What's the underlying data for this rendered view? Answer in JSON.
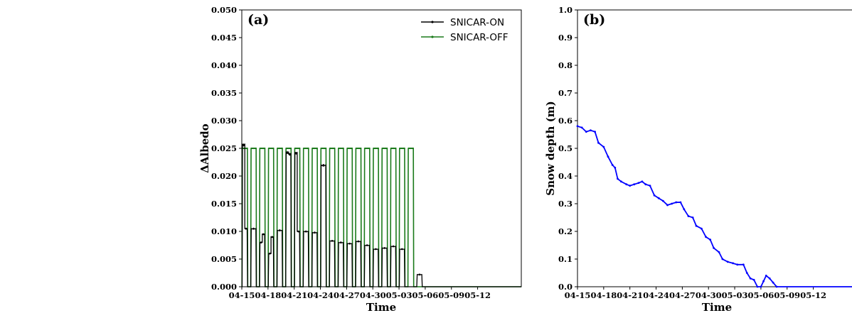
{
  "colors": {
    "snicar_on": "#000000",
    "snicar_off": "#1a7a1a",
    "snow_depth": "#0000ff",
    "zero_line": "#000000"
  },
  "chart_data": [
    {
      "type": "line",
      "panel_label": "(a)",
      "xlabel": "Time",
      "ylabel": "ΔAlbedo",
      "ylim": [
        0,
        0.05
      ],
      "x_unit": "days since 04-15",
      "xlim": [
        0,
        32
      ],
      "xticks": [
        {
          "pos": 0,
          "label": "04-15"
        },
        {
          "pos": 3,
          "label": "04-18"
        },
        {
          "pos": 6,
          "label": "04-21"
        },
        {
          "pos": 9,
          "label": "04-24"
        },
        {
          "pos": 12,
          "label": "04-27"
        },
        {
          "pos": 15,
          "label": "04-30"
        },
        {
          "pos": 18,
          "label": "05-03"
        },
        {
          "pos": 21,
          "label": "05-06"
        },
        {
          "pos": 24,
          "label": "05-09"
        },
        {
          "pos": 27,
          "label": "05-12"
        }
      ],
      "yticks": [
        "0.000",
        "0.005",
        "0.010",
        "0.015",
        "0.020",
        "0.025",
        "0.030",
        "0.035",
        "0.040",
        "0.045",
        "0.050"
      ],
      "legend": {
        "placement": "top-right",
        "entries": [
          "SNICAR-ON",
          "SNICAR-OFF"
        ]
      },
      "series": [
        {
          "name": "SNICAR-ON",
          "daily_pattern": "daytime peaks, zero at night",
          "peaks": [
            {
              "day": 0,
              "values": [
                0.0257,
                0.0105
              ]
            },
            {
              "day": 1,
              "values": [
                0.0105
              ]
            },
            {
              "day": 2,
              "values": [
                0.008,
                0.0095
              ]
            },
            {
              "day": 3,
              "values": [
                0.006,
                0.009
              ]
            },
            {
              "day": 4,
              "values": [
                0.0102
              ]
            },
            {
              "day": 5,
              "values": [
                0.0243,
                0.024
              ]
            },
            {
              "day": 6,
              "values": [
                0.0242,
                0.01
              ]
            },
            {
              "day": 7,
              "values": [
                0.01
              ]
            },
            {
              "day": 8,
              "values": [
                0.0098
              ]
            },
            {
              "day": 9,
              "values": [
                0.022
              ]
            },
            {
              "day": 10,
              "values": [
                0.0083
              ]
            },
            {
              "day": 11,
              "values": [
                0.008
              ]
            },
            {
              "day": 12,
              "values": [
                0.0078
              ]
            },
            {
              "day": 13,
              "values": [
                0.0082
              ]
            },
            {
              "day": 14,
              "values": [
                0.0075
              ]
            },
            {
              "day": 15,
              "values": [
                0.0068
              ]
            },
            {
              "day": 16,
              "values": [
                0.007
              ]
            },
            {
              "day": 17,
              "values": [
                0.0073
              ]
            },
            {
              "day": 18,
              "values": [
                0.0068
              ]
            },
            {
              "day": 20,
              "values": [
                0.0022
              ]
            }
          ]
        },
        {
          "name": "SNICAR-OFF",
          "daily_pattern": "constant during daytime, zero at night",
          "day_value": 0.025,
          "days": [
            0,
            1,
            2,
            3,
            4,
            5,
            6,
            7,
            8,
            9,
            10,
            11,
            12,
            13,
            14,
            15,
            16,
            17,
            18,
            19
          ]
        }
      ]
    },
    {
      "type": "line",
      "panel_label": "(b)",
      "xlabel": "Time",
      "ylabel": "Snow depth (m)",
      "ylim": [
        0,
        1.0
      ],
      "x_unit": "days since 04-15",
      "xlim": [
        0,
        32
      ],
      "xticks": [
        {
          "pos": 0,
          "label": "04-15"
        },
        {
          "pos": 3,
          "label": "04-18"
        },
        {
          "pos": 6,
          "label": "04-21"
        },
        {
          "pos": 9,
          "label": "04-24"
        },
        {
          "pos": 12,
          "label": "04-27"
        },
        {
          "pos": 15,
          "label": "04-30"
        },
        {
          "pos": 18,
          "label": "05-03"
        },
        {
          "pos": 21,
          "label": "05-06"
        },
        {
          "pos": 24,
          "label": "05-09"
        },
        {
          "pos": 27,
          "label": "05-12"
        }
      ],
      "yticks": [
        "0.0",
        "0.1",
        "0.2",
        "0.3",
        "0.4",
        "0.5",
        "0.6",
        "0.7",
        "0.8",
        "0.9",
        "1.0"
      ],
      "zero_reference_line": "dashed",
      "series": [
        {
          "name": "snow depth",
          "points": [
            [
              0,
              0.58
            ],
            [
              0.5,
              0.575
            ],
            [
              1,
              0.56
            ],
            [
              1.5,
              0.565
            ],
            [
              2,
              0.56
            ],
            [
              2.4,
              0.52
            ],
            [
              3,
              0.505
            ],
            [
              3.5,
              0.47
            ],
            [
              4,
              0.44
            ],
            [
              4.3,
              0.43
            ],
            [
              4.6,
              0.39
            ],
            [
              5,
              0.38
            ],
            [
              5.6,
              0.37
            ],
            [
              6,
              0.365
            ],
            [
              6.5,
              0.37
            ],
            [
              7,
              0.375
            ],
            [
              7.4,
              0.38
            ],
            [
              7.8,
              0.37
            ],
            [
              8.3,
              0.365
            ],
            [
              8.8,
              0.33
            ],
            [
              9.3,
              0.32
            ],
            [
              9.8,
              0.31
            ],
            [
              10.3,
              0.295
            ],
            [
              10.8,
              0.3
            ],
            [
              11.3,
              0.305
            ],
            [
              11.8,
              0.305
            ],
            [
              12.2,
              0.28
            ],
            [
              12.7,
              0.255
            ],
            [
              13.2,
              0.25
            ],
            [
              13.6,
              0.22
            ],
            [
              14.2,
              0.21
            ],
            [
              14.7,
              0.18
            ],
            [
              15.2,
              0.17
            ],
            [
              15.6,
              0.14
            ],
            [
              16.2,
              0.125
            ],
            [
              16.6,
              0.1
            ],
            [
              17.2,
              0.09
            ],
            [
              17.8,
              0.085
            ],
            [
              18.3,
              0.08
            ],
            [
              19.0,
              0.08
            ],
            [
              19.4,
              0.05
            ],
            [
              19.8,
              0.03
            ],
            [
              20.2,
              0.025
            ],
            [
              20.6,
              0.0
            ],
            [
              21.0,
              0.0
            ],
            [
              21.3,
              0.02
            ],
            [
              21.6,
              0.04
            ],
            [
              22.0,
              0.03
            ],
            [
              22.4,
              0.015
            ],
            [
              22.8,
              0.0
            ],
            [
              32,
              0.0
            ]
          ]
        }
      ]
    }
  ]
}
